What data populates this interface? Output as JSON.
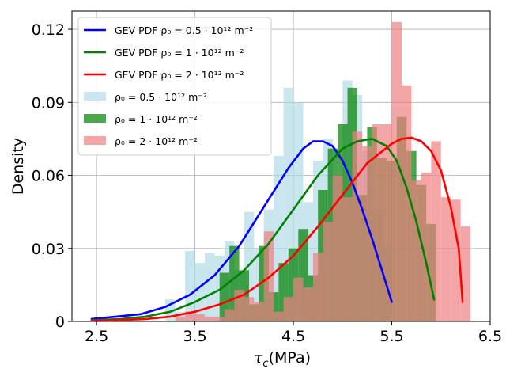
{
  "chart_data": {
    "type": "histogram_with_curves",
    "xlabel_main": "τ",
    "xlabel_sub": "c",
    "xlabel_unit": "(MPa)",
    "ylabel": "Density",
    "xlim": [
      2.25,
      6.5
    ],
    "ylim": [
      0,
      0.1275
    ],
    "xticks": [
      2.5,
      3.5,
      4.5,
      5.5,
      6.5
    ],
    "xtick_labels": [
      "2.5",
      "3.5",
      "4.5",
      "5.5",
      "6.5"
    ],
    "yticks": [
      0,
      0.03,
      0.06,
      0.09,
      0.12
    ],
    "ytick_labels": [
      "0",
      "0.03",
      "0.06",
      "0.09",
      "0.12"
    ],
    "grid": true,
    "legend_position": "upper-left",
    "histograms": [
      {
        "name": "ρ0 = 0.5 · 10^12 m^-2",
        "legend_label": "ρ₀ = 0.5 · 10¹² m⁻²",
        "color": "#add8e6",
        "alpha": 0.65,
        "bin_edges": [
          3.2,
          3.3,
          3.4,
          3.5,
          3.6,
          3.7,
          3.8,
          3.9,
          4.0,
          4.1,
          4.2,
          4.3,
          4.4,
          4.5,
          4.6,
          4.7,
          4.8,
          4.9,
          5.0,
          5.1,
          5.2,
          5.3,
          5.4,
          5.5
        ],
        "density": [
          0.009,
          0.004,
          0.029,
          0.024,
          0.028,
          0.027,
          0.033,
          0.021,
          0.045,
          0.03,
          0.046,
          0.068,
          0.096,
          0.09,
          0.049,
          0.066,
          0.075,
          0.06,
          0.099,
          0.093,
          0.07,
          0.046,
          0.03
        ]
      },
      {
        "name": "ρ0 = 1 · 10^12 m^-2",
        "legend_label": "ρ₀ = 1 · 10¹² m⁻²",
        "color": "#008000",
        "alpha": 0.7,
        "bin_edges": [
          3.75,
          3.85,
          3.95,
          4.05,
          4.15,
          4.25,
          4.35,
          4.45,
          4.55,
          4.65,
          4.75,
          4.85,
          4.95,
          5.05,
          5.15,
          5.25,
          5.35,
          5.45,
          5.55,
          5.65,
          5.75,
          5.85,
          5.95
        ],
        "density": [
          0.02,
          0.031,
          0.021,
          0.007,
          0.031,
          0.012,
          0.024,
          0.03,
          0.038,
          0.019,
          0.054,
          0.071,
          0.081,
          0.096,
          0.052,
          0.08,
          0.067,
          0.066,
          0.084,
          0.07,
          0.056,
          0.04
        ]
      },
      {
        "name": "ρ0 = 2 · 10^12 m^-2",
        "legend_label": "ρ₀ = 2 · 10¹² m⁻²",
        "color": "#f08080",
        "alpha": 0.7,
        "bin_edges": [
          3.3,
          3.4,
          3.5,
          3.6,
          3.7,
          3.8,
          3.9,
          4.0,
          4.1,
          4.2,
          4.3,
          4.4,
          4.5,
          4.6,
          4.7,
          4.8,
          4.9,
          5.0,
          5.1,
          5.2,
          5.3,
          5.4,
          5.5,
          5.6,
          5.7,
          5.8,
          5.9,
          6.0,
          6.1,
          6.2,
          6.3
        ],
        "density": [
          0.002,
          0.004,
          0.003,
          0.002,
          0.002,
          0.005,
          0.013,
          0.01,
          0.008,
          0.037,
          0.004,
          0.01,
          0.018,
          0.014,
          0.028,
          0.041,
          0.06,
          0.051,
          0.078,
          0.072,
          0.081,
          0.081,
          0.123,
          0.097,
          0.058,
          0.061,
          0.074,
          0.051,
          0.05,
          0.039,
          0.002
        ]
      }
    ],
    "curves": [
      {
        "name": "GEV PDF ρ0 = 0.5 · 10^12 m^-2",
        "legend_label": "GEV PDF ρ₀ = 0.5 · 10¹² m⁻²",
        "color": "#0000ff",
        "x": [
          2.45,
          2.7,
          2.95,
          3.2,
          3.45,
          3.7,
          3.95,
          4.2,
          4.45,
          4.6,
          4.7,
          4.8,
          4.9,
          5.0,
          5.1,
          5.2,
          5.3,
          5.4,
          5.5
        ],
        "y": [
          0.001,
          0.002,
          0.003,
          0.006,
          0.011,
          0.019,
          0.031,
          0.047,
          0.063,
          0.071,
          0.074,
          0.074,
          0.072,
          0.066,
          0.057,
          0.046,
          0.034,
          0.021,
          0.008
        ]
      },
      {
        "name": "GEV PDF ρ0 = 1 · 10^12 m^-2",
        "legend_label": "GEV PDF ρ₀ = 1 · 10¹² m⁻²",
        "color": "#008000",
        "x": [
          2.45,
          2.75,
          3.0,
          3.25,
          3.5,
          3.75,
          4.0,
          4.25,
          4.5,
          4.75,
          5.0,
          5.15,
          5.3,
          5.45,
          5.55,
          5.65,
          5.75,
          5.85,
          5.93
        ],
        "y": [
          0.0005,
          0.001,
          0.002,
          0.004,
          0.008,
          0.013,
          0.021,
          0.032,
          0.046,
          0.06,
          0.071,
          0.074,
          0.075,
          0.072,
          0.066,
          0.055,
          0.041,
          0.024,
          0.009
        ]
      },
      {
        "name": "GEV PDF ρ0 = 2 · 10^12 m^-2",
        "legend_label": "GEV PDF ρ₀ = 2 · 10¹² m⁻²",
        "color": "#ff0000",
        "x": [
          2.45,
          2.75,
          3.0,
          3.25,
          3.5,
          3.75,
          4.0,
          4.25,
          4.5,
          4.75,
          5.0,
          5.25,
          5.5,
          5.6,
          5.7,
          5.8,
          5.9,
          6.0,
          6.1,
          6.18,
          6.22
        ],
        "y": [
          0.0003,
          0.0006,
          0.001,
          0.002,
          0.004,
          0.007,
          0.011,
          0.018,
          0.027,
          0.039,
          0.052,
          0.065,
          0.073,
          0.075,
          0.0755,
          0.074,
          0.07,
          0.062,
          0.047,
          0.03,
          0.008
        ]
      }
    ]
  }
}
